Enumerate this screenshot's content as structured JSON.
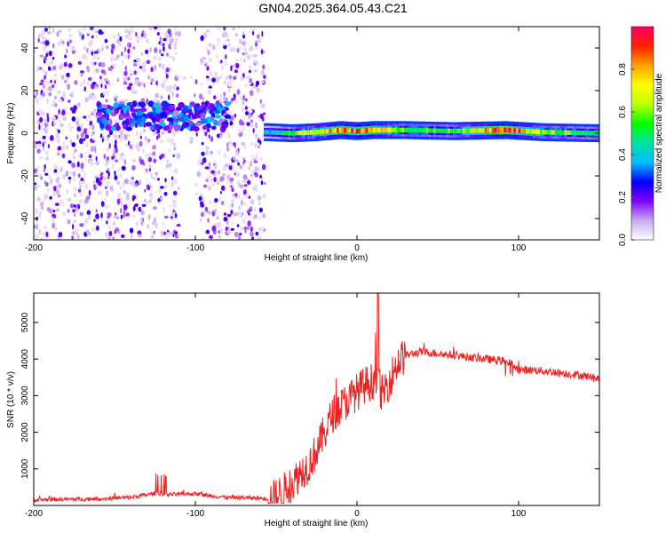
{
  "figure": {
    "title": "GN04.2025.364.05.43.C21"
  },
  "chart_data": [
    {
      "type": "heatmap",
      "xlabel": "Height of straight line (km)",
      "ylabel": "Frequency (Hz)",
      "xlim": [
        -200,
        150
      ],
      "ylim": [
        -50,
        50
      ],
      "xticks": [
        -200,
        -100,
        0,
        100
      ],
      "yticks": [
        -40,
        -20,
        0,
        20,
        40
      ],
      "colorbar": {
        "label": "Normalized spectral amplitude",
        "ticks": [
          "0.0",
          "0.2",
          "0.4",
          "0.6",
          "0.8"
        ],
        "range": [
          0,
          1
        ],
        "colors": [
          "#ffffff",
          "#c8a8f0",
          "#8000ff",
          "#0000ff",
          "#00c0ff",
          "#00e0a0",
          "#00ff00",
          "#c0ff00",
          "#ffff00",
          "#ffa000",
          "#ff2000",
          "#ff0060"
        ]
      },
      "features": {
        "noise_region_km": [
          -200,
          -57
        ],
        "noise_gap_km": [
          -110,
          -97
        ],
        "low_freq_cluster": {
          "x_range_km": [
            -160,
            -80
          ],
          "freq_hz": 8,
          "amplitude": 0.3
        },
        "signal_band": [
          {
            "x_km": -55,
            "freq_hz": 0.5,
            "amplitude": 0.35
          },
          {
            "x_km": -40,
            "freq_hz": 0.0,
            "amplitude": 0.55
          },
          {
            "x_km": -25,
            "freq_hz": 0.5,
            "amplitude": 0.7
          },
          {
            "x_km": -10,
            "freq_hz": 1.5,
            "amplitude": 0.85
          },
          {
            "x_km": 0,
            "freq_hz": 1.0,
            "amplitude": 0.9
          },
          {
            "x_km": 10,
            "freq_hz": 1.5,
            "amplitude": 0.8
          },
          {
            "x_km": 30,
            "freq_hz": 1.5,
            "amplitude": 0.55
          },
          {
            "x_km": 60,
            "freq_hz": 1.0,
            "amplitude": 0.55
          },
          {
            "x_km": 92,
            "freq_hz": 1.5,
            "amplitude": 0.95
          },
          {
            "x_km": 115,
            "freq_hz": 0.5,
            "amplitude": 0.6
          },
          {
            "x_km": 150,
            "freq_hz": 0.0,
            "amplitude": 0.5
          }
        ]
      }
    },
    {
      "type": "line",
      "xlabel": "Height of straight line (km)",
      "ylabel": "SNR (10 * v/v)",
      "xlim": [
        -200,
        150
      ],
      "ylim": [
        0,
        5800
      ],
      "xticks": [
        -200,
        -100,
        0,
        100
      ],
      "yticks": [
        1000,
        2000,
        3000,
        4000,
        5000
      ],
      "series": [
        {
          "color": "#ee2020",
          "x": [
            -200,
            -180,
            -160,
            -140,
            -125,
            -115,
            -100,
            -90,
            -80,
            -70,
            -60,
            -52,
            -45,
            -40,
            -35,
            -30,
            -25,
            -20,
            -15,
            -10,
            -5,
            0,
            5,
            10,
            13,
            15,
            20,
            25,
            30,
            40,
            50,
            60,
            70,
            80,
            90,
            95,
            100,
            110,
            120,
            130,
            140,
            150
          ],
          "y": [
            150,
            170,
            180,
            220,
            330,
            300,
            320,
            260,
            220,
            210,
            200,
            180,
            400,
            600,
            900,
            1100,
            1500,
            2000,
            2500,
            2700,
            2900,
            3100,
            3300,
            3400,
            3700,
            3000,
            3400,
            3900,
            4100,
            4200,
            4150,
            4100,
            4050,
            4000,
            3950,
            3900,
            3700,
            3700,
            3650,
            3600,
            3550,
            3450
          ]
        }
      ]
    }
  ]
}
